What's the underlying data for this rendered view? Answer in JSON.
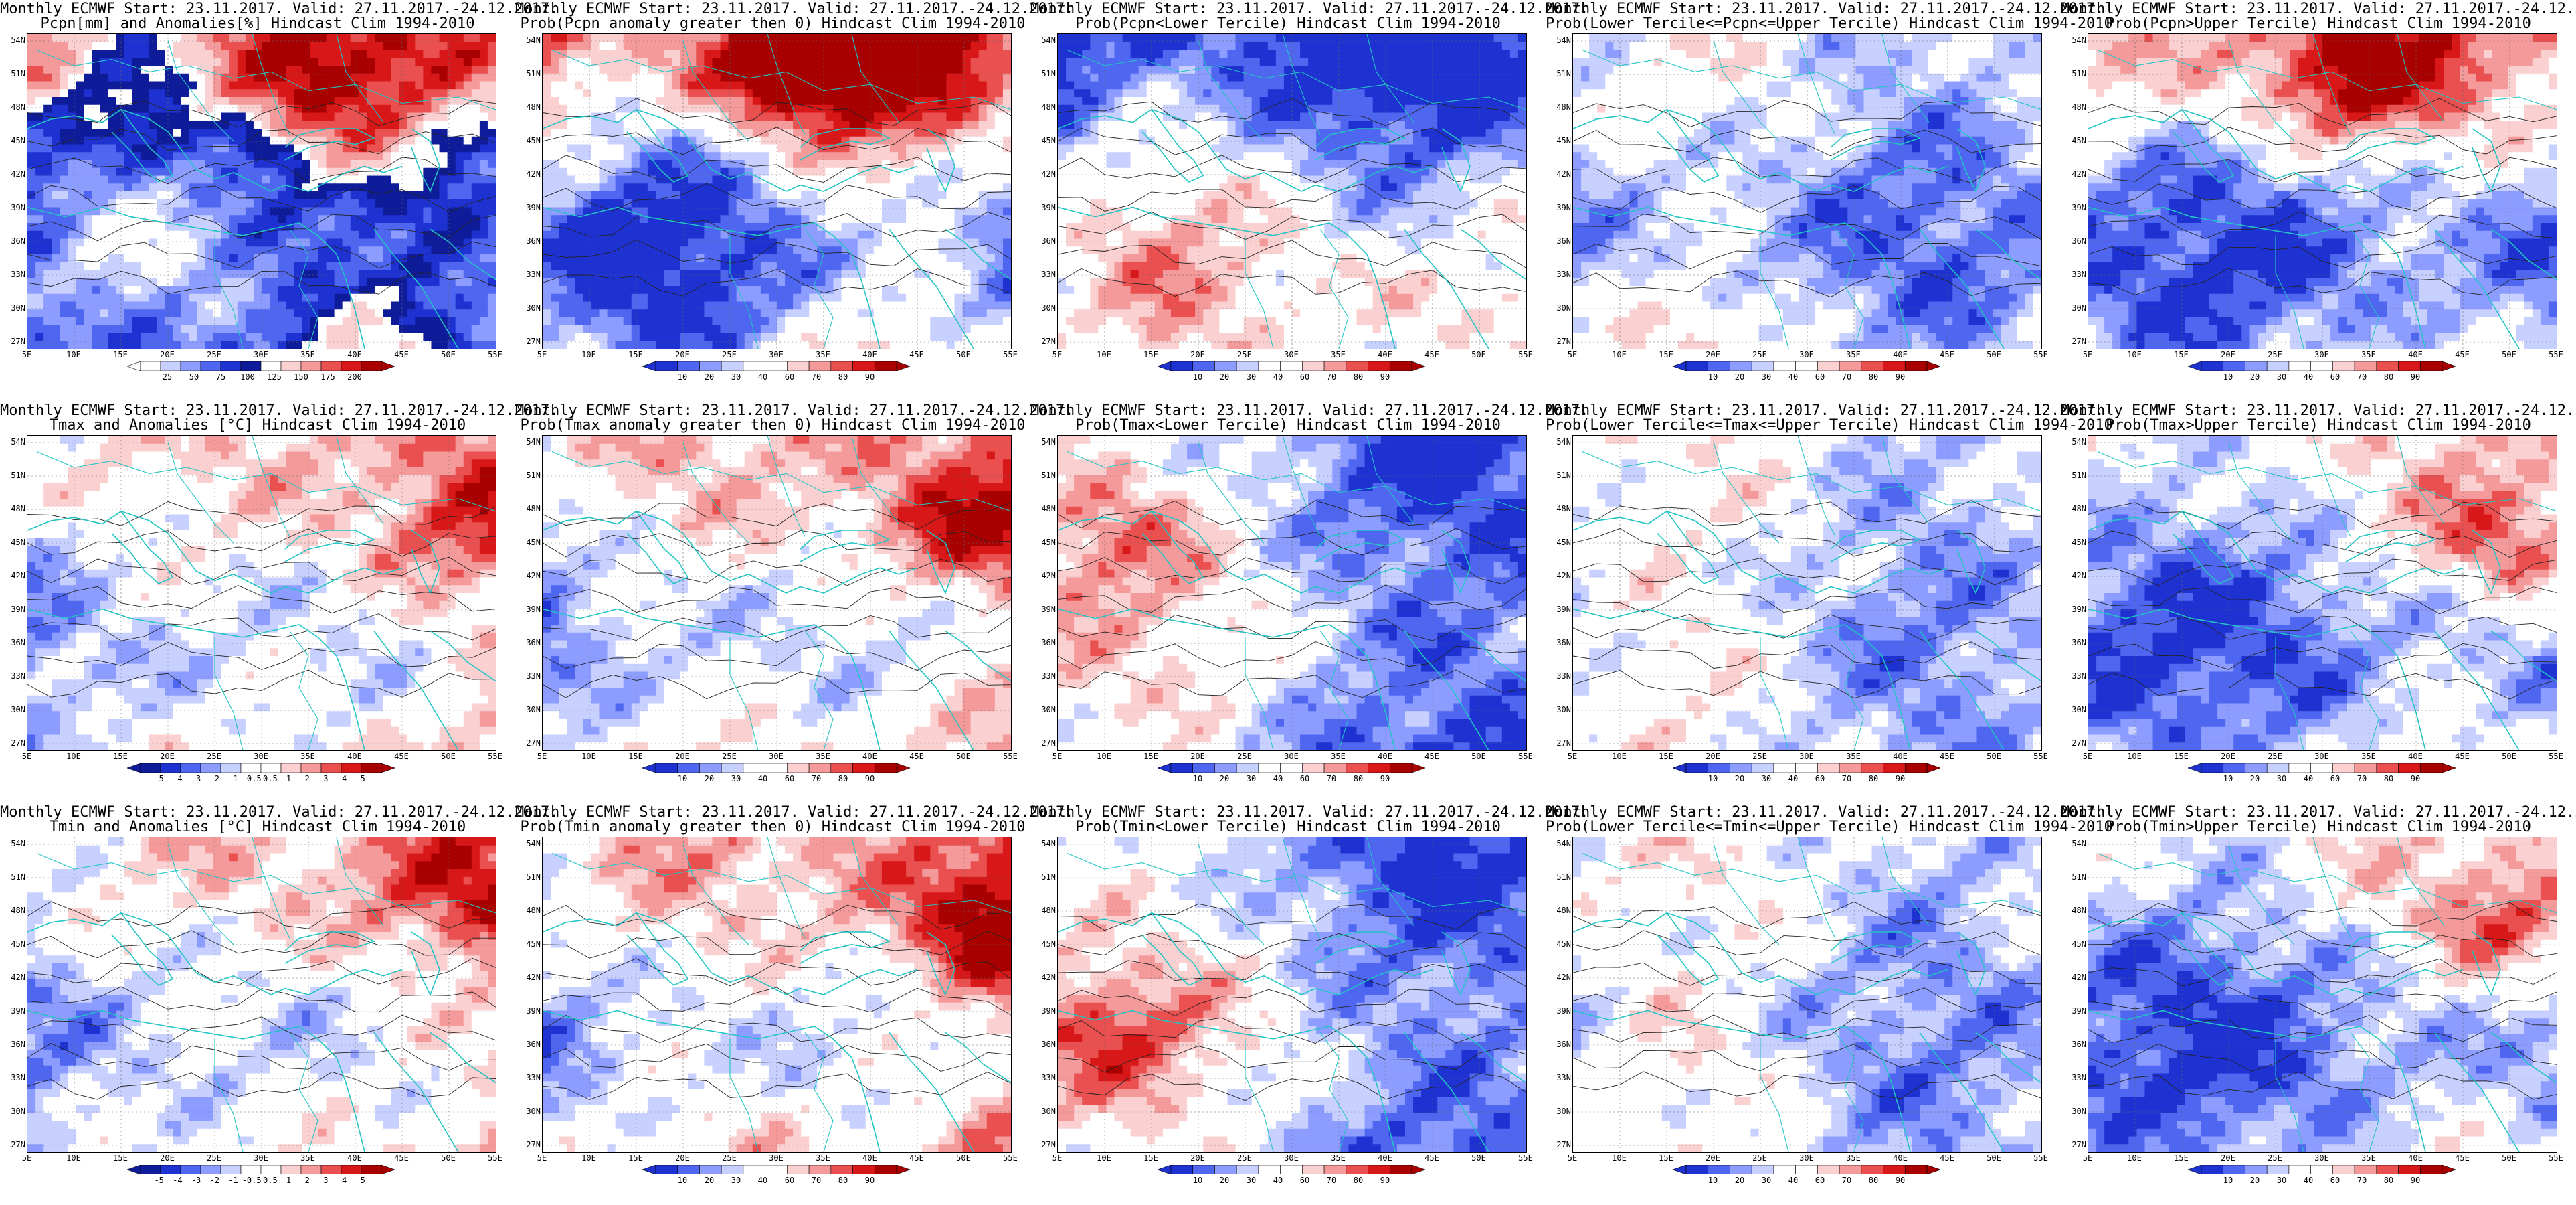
{
  "header_line": "Monthly ECMWF Start: 23.11.2017. Valid: 27.11.2017.-24.12.2017.",
  "lat_labels": [
    "54N",
    "51N",
    "48N",
    "45N",
    "42N",
    "39N",
    "36N",
    "33N",
    "30N",
    "27N"
  ],
  "lon_labels": [
    "5E",
    "10E",
    "15E",
    "20E",
    "25E",
    "30E",
    "35E",
    "40E",
    "45E",
    "50E",
    "55E"
  ],
  "palettes": {
    "precip": [
      "#ffffff",
      "#c8d0ff",
      "#8c9cff",
      "#4f66f0",
      "#1e32d2",
      "#0f1c9a",
      "#ffffff",
      "#fbd0d0",
      "#f59a9a",
      "#ea5050",
      "#d81818",
      "#a80000"
    ],
    "prob": [
      "#1e32d2",
      "#4f66f0",
      "#8c9cff",
      "#c8d0ff",
      "#ffffff",
      "#ffffff",
      "#fbd0d0",
      "#f59a9a",
      "#ea5050",
      "#d81818",
      "#a80000"
    ],
    "temp": [
      "#0f1c9a",
      "#1e32d2",
      "#4f66f0",
      "#8c9cff",
      "#c8d0ff",
      "#ffffff",
      "#ffffff",
      "#fbd0d0",
      "#f59a9a",
      "#ea5050",
      "#d81818",
      "#a80000"
    ]
  },
  "colorbar_ticks": {
    "precip": [
      "25",
      "50",
      "75",
      "100",
      "125",
      "150",
      "175",
      "200"
    ],
    "prob": [
      "10",
      "20",
      "30",
      "40",
      "60",
      "70",
      "80",
      "90"
    ],
    "temp": [
      "-5",
      "-4",
      "-3",
      "-2",
      "-1",
      "-0.5",
      "0.5",
      "1",
      "2",
      "3",
      "4",
      "5"
    ]
  },
  "panels": [
    {
      "title2": "Pcpn[mm] and Anomalies[%] Hindcast Clim 1994-2010",
      "palette": "precip",
      "field": {
        "base": 0.45,
        "a1": -0.15,
        "a2": 0.2,
        "east": 0.0,
        "south": -0.1,
        "hot": [
          0.6,
          0.15,
          0.25
        ]
      }
    },
    {
      "title2": "Prob(Pcpn anomaly greater then 0) Hindcast Clim 1994-2010",
      "palette": "prob",
      "field": {
        "base": 0.45,
        "a1": -0.2,
        "a2": 0.25,
        "east": 0.0,
        "south": -0.2,
        "hot": [
          0.55,
          0.1,
          0.45
        ]
      }
    },
    {
      "title2": "Prob(Pcpn<Lower Tercile) Hindcast Clim 1994-2010",
      "palette": "prob",
      "field": {
        "base": 0.3,
        "a1": 0.15,
        "a2": -0.15,
        "east": 0.0,
        "south": 0.3,
        "hot": [
          0.8,
          0.9,
          0.2
        ]
      }
    },
    {
      "title2": "Prob(Lower Tercile<=Pcpn<=Upper Tercile) Hindcast Clim 1994-2010",
      "palette": "prob",
      "field": {
        "base": 0.32,
        "a1": 0.1,
        "a2": 0.1,
        "east": 0.0,
        "south": 0.05,
        "hot": [
          0.25,
          0.95,
          0.15
        ]
      }
    },
    {
      "title2": "Prob(Pcpn>Upper Tercile) Hindcast Clim 1994-2010",
      "palette": "prob",
      "field": {
        "base": 0.38,
        "a1": -0.1,
        "a2": 0.2,
        "east": 0.0,
        "south": -0.2,
        "hot": [
          0.55,
          0.15,
          0.35
        ]
      }
    },
    {
      "title2": "Tmax and Anomalies [°C] Hindcast Clim 1994-2010",
      "palette": "temp",
      "field": {
        "base": 0.52,
        "a1": 0.05,
        "a2": 0.1,
        "east": 0.3,
        "south": 0.0,
        "hot": [
          0.9,
          0.3,
          0.2
        ]
      }
    },
    {
      "title2": "Prob(Tmax anomaly greater then 0) Hindcast Clim 1994-2010",
      "palette": "prob",
      "field": {
        "base": 0.5,
        "a1": 0.08,
        "a2": 0.15,
        "east": 0.35,
        "south": 0.05,
        "hot": [
          0.9,
          0.3,
          0.3
        ]
      }
    },
    {
      "title2": "Prob(Tmax<Lower Tercile) Hindcast Clim 1994-2010",
      "palette": "prob",
      "field": {
        "base": 0.3,
        "a1": 0.1,
        "a2": -0.1,
        "east": -0.35,
        "south": -0.1,
        "hot": [
          0.1,
          0.3,
          0.25
        ]
      }
    },
    {
      "title2": "Prob(Lower Tercile<=Tmax<=Upper Tercile) Hindcast Clim 1994-2010",
      "palette": "prob",
      "field": {
        "base": 0.36,
        "a1": 0.1,
        "a2": 0.05,
        "east": -0.05,
        "south": 0.0,
        "hot": [
          0.2,
          0.7,
          0.1
        ]
      }
    },
    {
      "title2": "Prob(Tmax>Upper Tercile) Hindcast Clim 1994-2010",
      "palette": "prob",
      "field": {
        "base": 0.33,
        "a1": -0.1,
        "a2": 0.15,
        "east": 0.1,
        "south": 0.0,
        "hot": [
          0.92,
          0.35,
          0.35
        ]
      }
    },
    {
      "title2": "Tmin and Anomalies [°C] Hindcast Clim 1994-2010",
      "palette": "temp",
      "field": {
        "base": 0.52,
        "a1": 0.05,
        "a2": 0.1,
        "east": 0.32,
        "south": 0.0,
        "hot": [
          0.9,
          0.2,
          0.2
        ]
      }
    },
    {
      "title2": "Prob(Tmin anomaly greater then 0) Hindcast Clim 1994-2010",
      "palette": "prob",
      "field": {
        "base": 0.52,
        "a1": 0.08,
        "a2": 0.15,
        "east": 0.35,
        "south": 0.05,
        "hot": [
          0.95,
          0.3,
          0.35
        ]
      }
    },
    {
      "title2": "Prob(Tmin<Lower Tercile) Hindcast Clim 1994-2010",
      "palette": "prob",
      "field": {
        "base": 0.32,
        "a1": 0.1,
        "a2": -0.1,
        "east": -0.35,
        "south": -0.05,
        "hot": [
          0.1,
          0.6,
          0.2
        ]
      }
    },
    {
      "title2": "Prob(Lower Tercile<=Tmin<=Upper Tercile) Hindcast Clim 1994-2010",
      "palette": "prob",
      "field": {
        "base": 0.36,
        "a1": 0.1,
        "a2": 0.05,
        "east": -0.05,
        "south": 0.0,
        "hot": [
          0.2,
          0.7,
          0.1
        ]
      }
    },
    {
      "title2": "Prob(Tmin>Upper Tercile) Hindcast Clim 1994-2010",
      "palette": "prob",
      "field": {
        "base": 0.32,
        "a1": -0.1,
        "a2": 0.15,
        "east": 0.1,
        "south": 0.0,
        "hot": [
          0.92,
          0.3,
          0.3
        ]
      }
    }
  ]
}
